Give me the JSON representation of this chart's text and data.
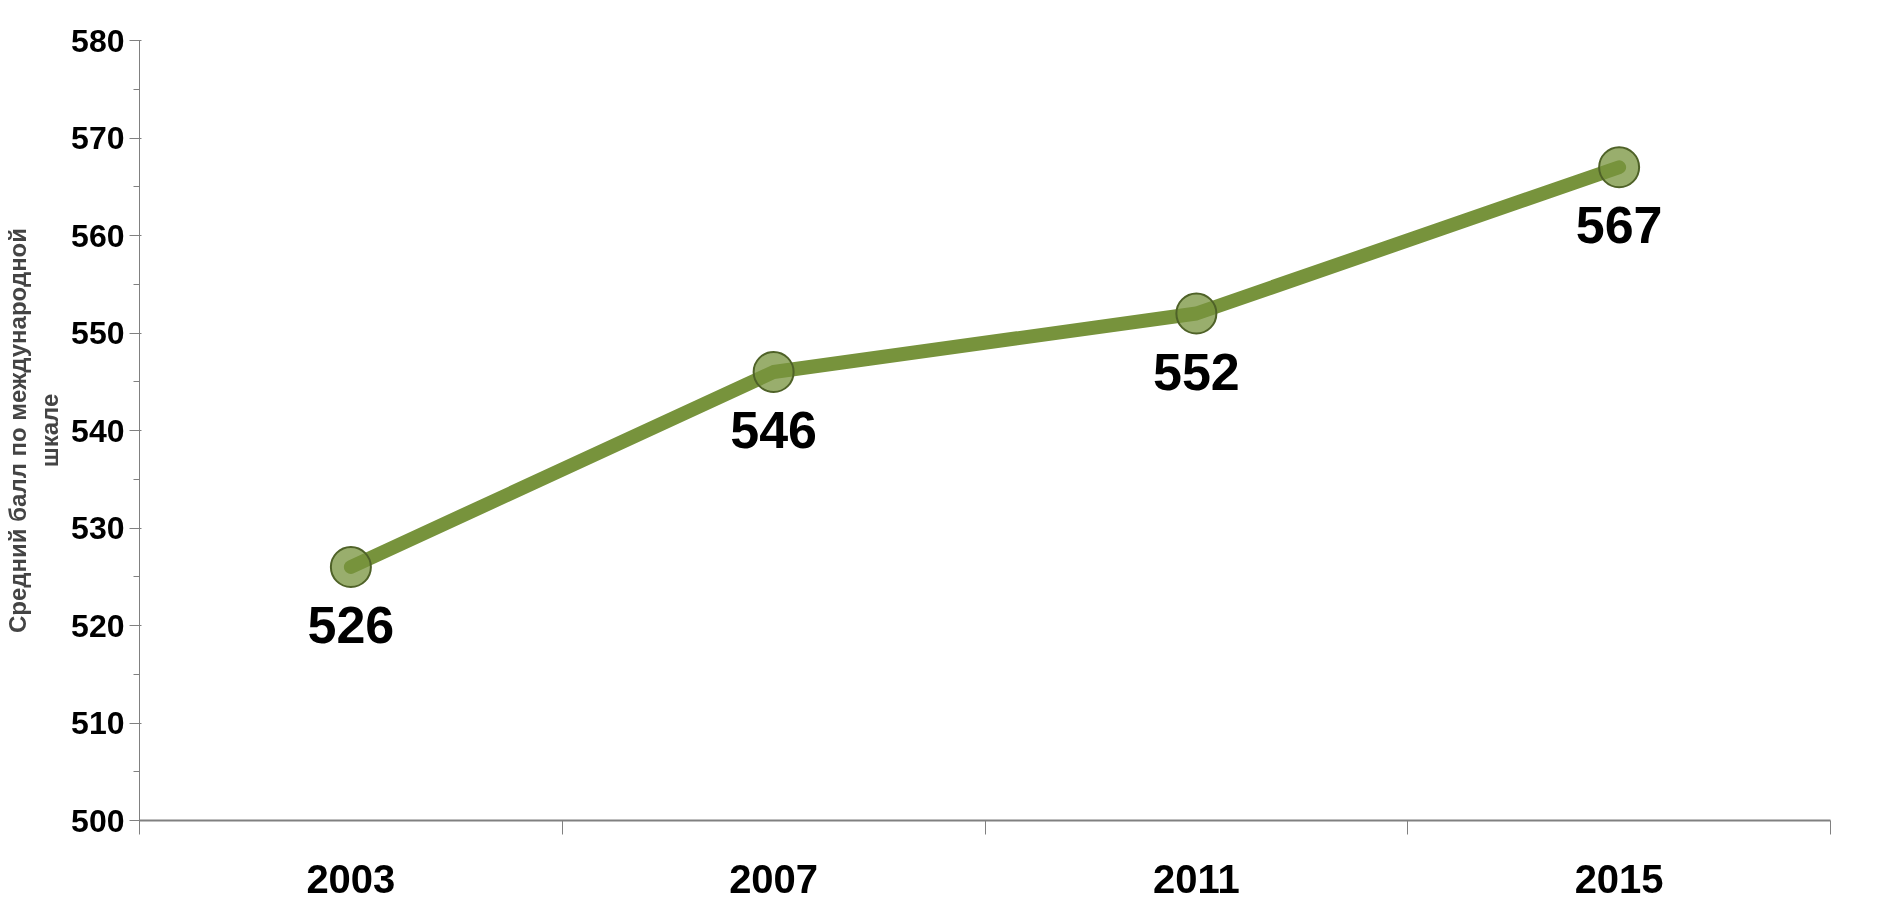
{
  "chart_data": {
    "type": "line",
    "categories": [
      "2003",
      "2007",
      "2011",
      "2015"
    ],
    "ylabel": "Средний балл по международной\nшкале",
    "series": [
      {
        "color": "#77933c",
        "values": [
          526,
          546,
          552,
          567
        ]
      }
    ],
    "ylim": [
      500,
      580
    ],
    "yticks": [
      500,
      510,
      520,
      530,
      540,
      550,
      560,
      570,
      580
    ],
    "marker": "circle",
    "data_labels": true,
    "grid": false
  }
}
